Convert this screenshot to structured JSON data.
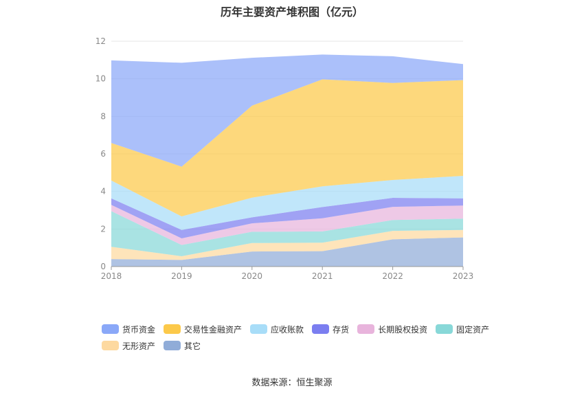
{
  "chart_data": {
    "type": "area",
    "stacked": true,
    "title": "历年主要资产堆积图（亿元）",
    "categories": [
      "2018",
      "2019",
      "2020",
      "2021",
      "2022",
      "2023"
    ],
    "ylim": [
      0,
      12
    ],
    "yticks": [
      0,
      2,
      4,
      6,
      8,
      10,
      12
    ],
    "grid": true,
    "legend_position": "bottom",
    "series": [
      {
        "name": "货币资金",
        "color": "#8aa8f8",
        "values": [
          4.4,
          5.53,
          2.55,
          1.32,
          1.42,
          0.85
        ]
      },
      {
        "name": "交易性金融资产",
        "color": "#fcc94a",
        "values": [
          2.0,
          2.65,
          4.9,
          5.7,
          5.17,
          5.1
        ]
      },
      {
        "name": "应收账款",
        "color": "#a8ddf8",
        "values": [
          0.95,
          0.72,
          1.05,
          1.1,
          0.95,
          1.2
        ]
      },
      {
        "name": "存货",
        "color": "#7b7ef0",
        "values": [
          0.35,
          0.45,
          0.32,
          0.6,
          0.48,
          0.38
        ]
      },
      {
        "name": "长期股权投资",
        "color": "#e8b4dc",
        "values": [
          0.33,
          0.35,
          0.45,
          0.7,
          0.7,
          0.7
        ]
      },
      {
        "name": "固定资产",
        "color": "#88d8d8",
        "values": [
          1.9,
          0.6,
          0.6,
          0.6,
          0.58,
          0.6
        ]
      },
      {
        "name": "无形资产",
        "color": "#fdd9a0",
        "values": [
          0.65,
          0.2,
          0.45,
          0.45,
          0.45,
          0.4
        ]
      },
      {
        "name": "其它",
        "color": "#90acd8",
        "values": [
          0.4,
          0.35,
          0.8,
          0.82,
          1.45,
          1.55
        ]
      }
    ]
  },
  "source_note": "数据来源：恒生聚源"
}
